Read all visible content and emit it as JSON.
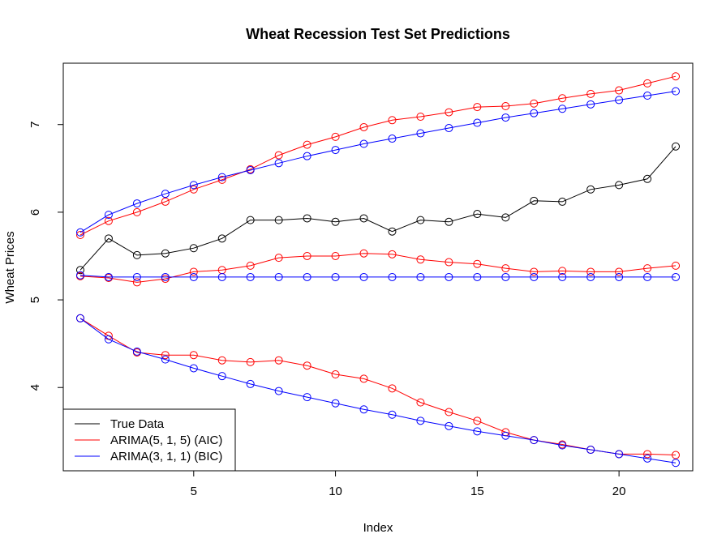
{
  "chart_data": {
    "type": "line",
    "title": "Wheat Recession Test Set Predictions",
    "xlabel": "Index",
    "ylabel": "Wheat Prices",
    "xlim": [
      0.4,
      22.6
    ],
    "ylim": [
      3.05,
      7.7
    ],
    "xticks": [
      5,
      10,
      15,
      20
    ],
    "yticks": [
      4,
      5,
      6,
      7
    ],
    "grid": false,
    "legend_position": "bottom-left",
    "x": [
      1,
      2,
      3,
      4,
      5,
      6,
      7,
      8,
      9,
      10,
      11,
      12,
      13,
      14,
      15,
      16,
      17,
      18,
      19,
      20,
      21,
      22
    ],
    "series": [
      {
        "name": "True Data",
        "color": "#000000",
        "values": [
          5.34,
          5.7,
          5.51,
          5.53,
          5.59,
          5.7,
          5.91,
          5.91,
          5.93,
          5.89,
          5.93,
          5.78,
          5.91,
          5.89,
          5.98,
          5.94,
          6.13,
          6.12,
          6.26,
          6.31,
          6.38,
          6.75
        ]
      },
      {
        "name": "ARIMA(5, 1, 5) (AIC)",
        "color": "#ff0000",
        "values": [
          5.27,
          5.25,
          5.2,
          5.24,
          5.32,
          5.34,
          5.39,
          5.48,
          5.5,
          5.5,
          5.53,
          5.52,
          5.46,
          5.43,
          5.41,
          5.36,
          5.32,
          5.33,
          5.32,
          5.32,
          5.36,
          5.39
        ]
      },
      {
        "name": "ARIMA(5, 1, 5) (AIC) upper",
        "color": "#ff0000",
        "values": [
          5.74,
          5.9,
          6.0,
          6.12,
          6.26,
          6.37,
          6.49,
          6.65,
          6.77,
          6.86,
          6.97,
          7.05,
          7.09,
          7.14,
          7.2,
          7.21,
          7.24,
          7.3,
          7.35,
          7.39,
          7.47,
          7.55
        ]
      },
      {
        "name": "ARIMA(5, 1, 5) (AIC) lower",
        "color": "#ff0000",
        "values": [
          4.79,
          4.59,
          4.4,
          4.37,
          4.37,
          4.31,
          4.29,
          4.31,
          4.25,
          4.15,
          4.1,
          3.99,
          3.83,
          3.72,
          3.62,
          3.49,
          3.4,
          3.35,
          3.29,
          3.24,
          3.24,
          3.23
        ]
      },
      {
        "name": "ARIMA(3, 1, 1) (BIC)",
        "color": "#0000ff",
        "values": [
          5.28,
          5.26,
          5.26,
          5.26,
          5.26,
          5.26,
          5.26,
          5.26,
          5.26,
          5.26,
          5.26,
          5.26,
          5.26,
          5.26,
          5.26,
          5.26,
          5.26,
          5.26,
          5.26,
          5.26,
          5.26,
          5.26
        ]
      },
      {
        "name": "ARIMA(3, 1, 1) (BIC) upper",
        "color": "#0000ff",
        "values": [
          5.77,
          5.97,
          6.1,
          6.21,
          6.31,
          6.4,
          6.48,
          6.56,
          6.64,
          6.71,
          6.78,
          6.84,
          6.9,
          6.96,
          7.02,
          7.08,
          7.13,
          7.18,
          7.23,
          7.28,
          7.33,
          7.38
        ]
      },
      {
        "name": "ARIMA(3, 1, 1) (BIC) lower",
        "color": "#0000ff",
        "values": [
          4.79,
          4.55,
          4.41,
          4.32,
          4.22,
          4.13,
          4.04,
          3.96,
          3.89,
          3.82,
          3.75,
          3.69,
          3.62,
          3.56,
          3.5,
          3.45,
          3.4,
          3.34,
          3.29,
          3.24,
          3.19,
          3.14
        ]
      }
    ],
    "legend": [
      {
        "label": "True Data",
        "color": "#000000"
      },
      {
        "label": "ARIMA(5, 1, 5) (AIC)",
        "color": "#ff0000"
      },
      {
        "label": "ARIMA(3, 1, 1) (BIC)",
        "color": "#0000ff"
      }
    ]
  }
}
